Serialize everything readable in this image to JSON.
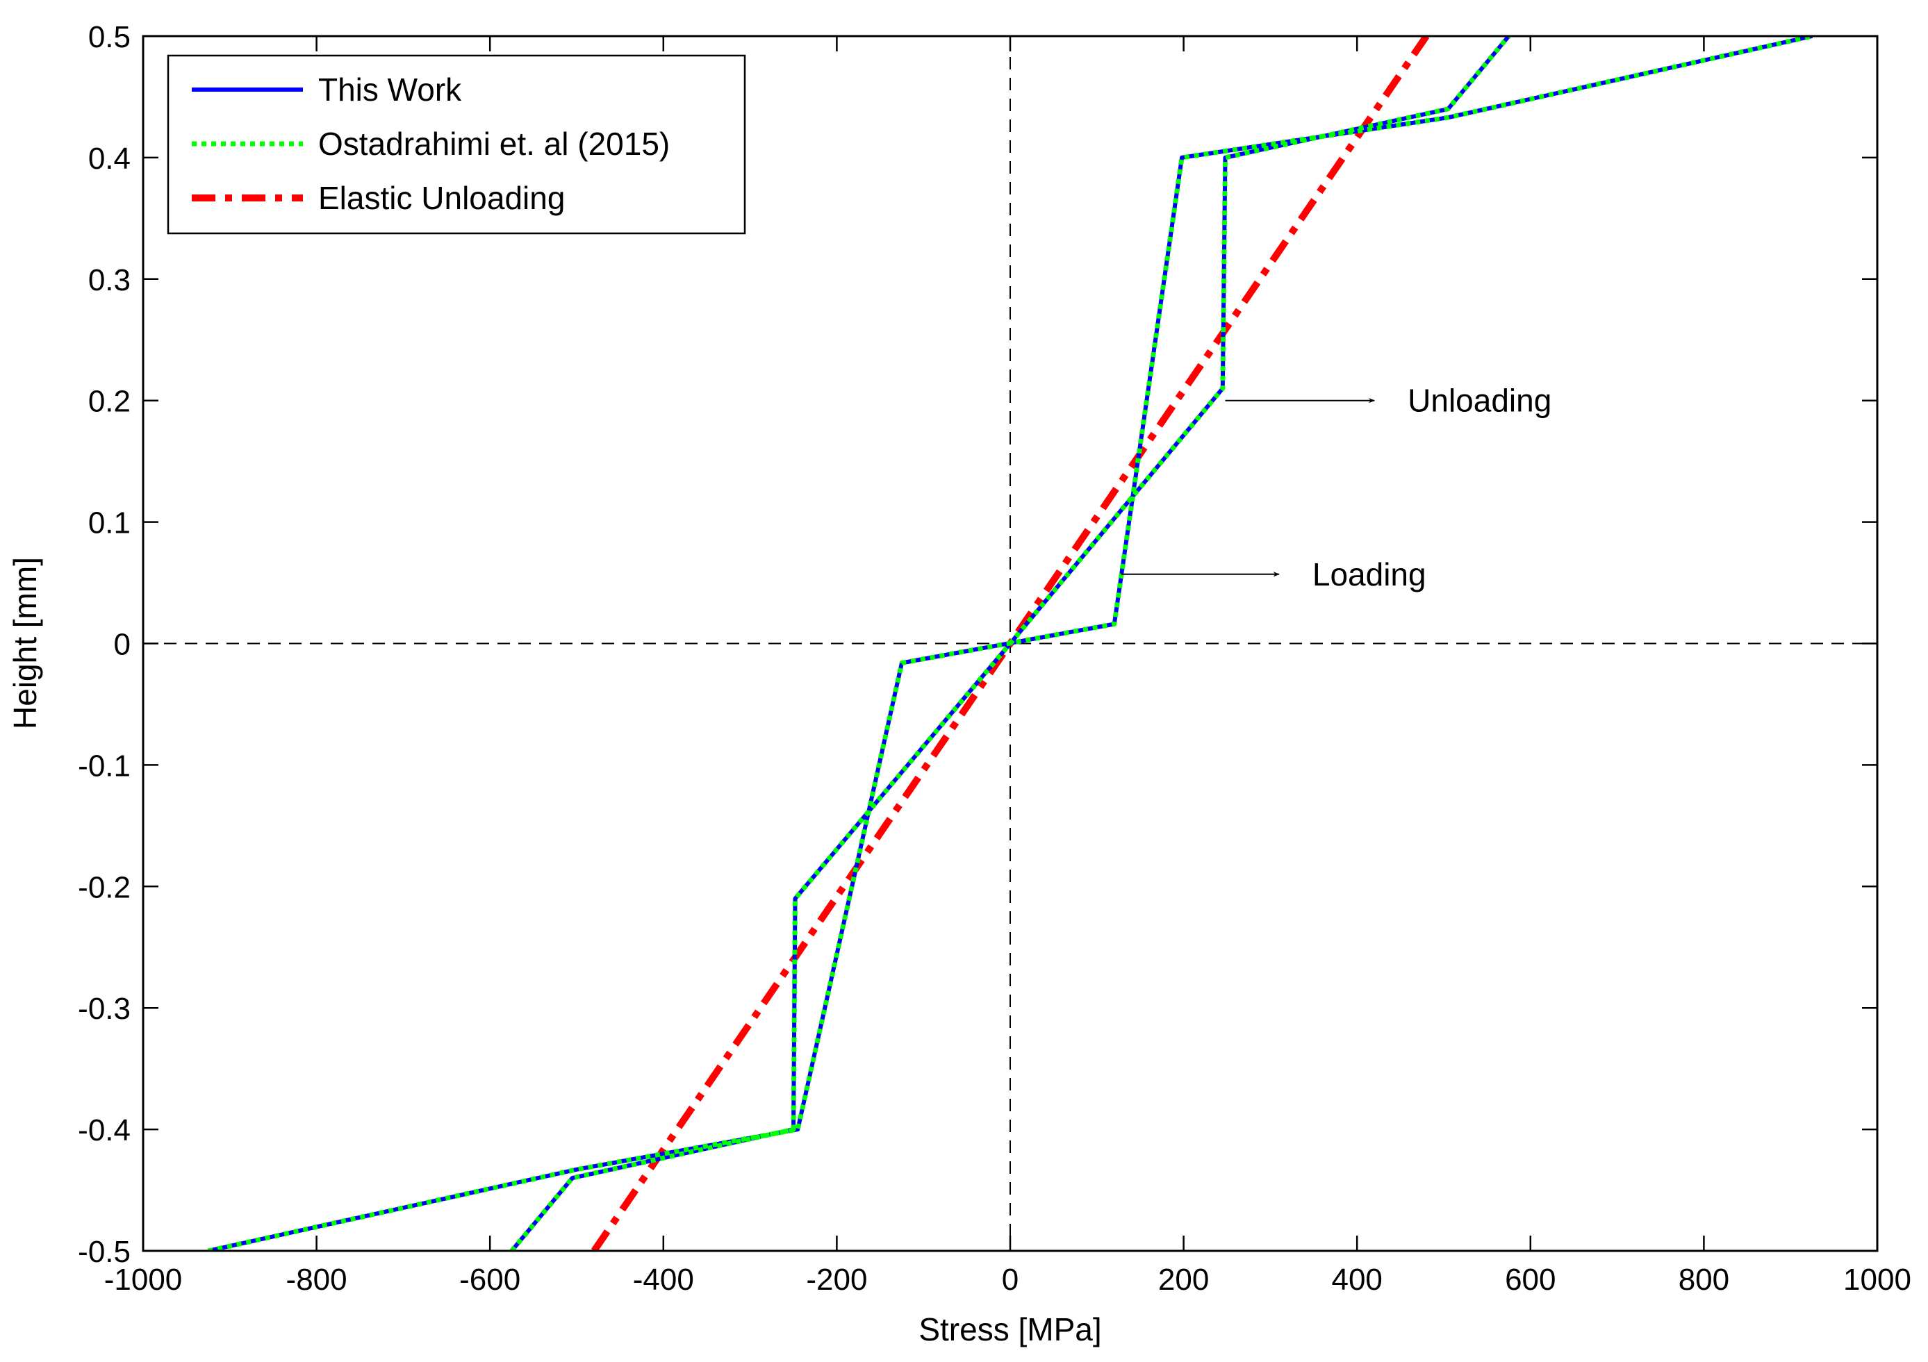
{
  "chart_data": {
    "type": "line",
    "title": "",
    "xlabel": "Stress [MPa]",
    "ylabel": "Height [mm]",
    "xlim": [
      -1000,
      1000
    ],
    "ylim": [
      -0.5,
      0.5
    ],
    "xticks": [
      -1000,
      -800,
      -600,
      -400,
      -200,
      0,
      200,
      400,
      600,
      800,
      1000
    ],
    "yticks": [
      -0.5,
      -0.4,
      -0.3,
      -0.2,
      -0.1,
      0,
      0.1,
      0.2,
      0.3,
      0.4,
      0.5
    ],
    "xtick_labels": [
      "-1000",
      "-800",
      "-600",
      "-400",
      "-200",
      "0",
      "200",
      "400",
      "600",
      "800",
      "1000"
    ],
    "ytick_labels": [
      "-0.5",
      "-0.4",
      "-0.3",
      "-0.2",
      "-0.1",
      "0",
      "0.1",
      "0.2",
      "0.3",
      "0.4",
      "0.5"
    ],
    "grid": false,
    "legend_position": "top-left",
    "reference_lines": {
      "x": 0,
      "y": 0,
      "style": "dashed"
    },
    "series": [
      {
        "name": "This Work",
        "color": "#0000ff",
        "style": "solid",
        "curves": [
          {
            "x": [
              -925,
              -500,
              -245,
              -125,
              120,
              198,
              505,
              925
            ],
            "y": [
              -0.5,
              -0.433,
              -0.4,
              -0.016,
              0.016,
              0.4,
              0.433,
              0.5
            ]
          },
          {
            "x": [
              -575,
              -505,
              -250,
              -248,
              0,
              245,
              248,
              505,
              575
            ],
            "y": [
              -0.5,
              -0.44,
              -0.4,
              -0.21,
              0,
              0.21,
              0.4,
              0.44,
              0.5
            ]
          }
        ]
      },
      {
        "name": "Ostadrahimi et. al (2015)",
        "color": "#00ff00",
        "style": "dotted",
        "curves": [
          {
            "x": [
              -925,
              -500,
              -245,
              -125,
              120,
              198,
              505,
              925
            ],
            "y": [
              -0.5,
              -0.433,
              -0.4,
              -0.016,
              0.016,
              0.4,
              0.433,
              0.5
            ]
          },
          {
            "x": [
              -575,
              -505,
              -250,
              -248,
              0,
              245,
              248,
              505,
              575
            ],
            "y": [
              -0.5,
              -0.44,
              -0.4,
              -0.21,
              0,
              0.21,
              0.4,
              0.44,
              0.5
            ]
          }
        ]
      },
      {
        "name": "Elastic Unloading",
        "color": "#ff0000",
        "style": "dash-dot",
        "curves": [
          {
            "x": [
              -480,
              480
            ],
            "y": [
              -0.5,
              0.5
            ]
          }
        ]
      }
    ],
    "annotations": [
      {
        "text": "Unloading",
        "arrow_from": [
          248,
          0.2
        ],
        "arrow_to": [
          420,
          0.2
        ]
      },
      {
        "text": "Loading",
        "arrow_from": [
          128,
          0.057
        ],
        "arrow_to": [
          310,
          0.057
        ]
      }
    ]
  }
}
